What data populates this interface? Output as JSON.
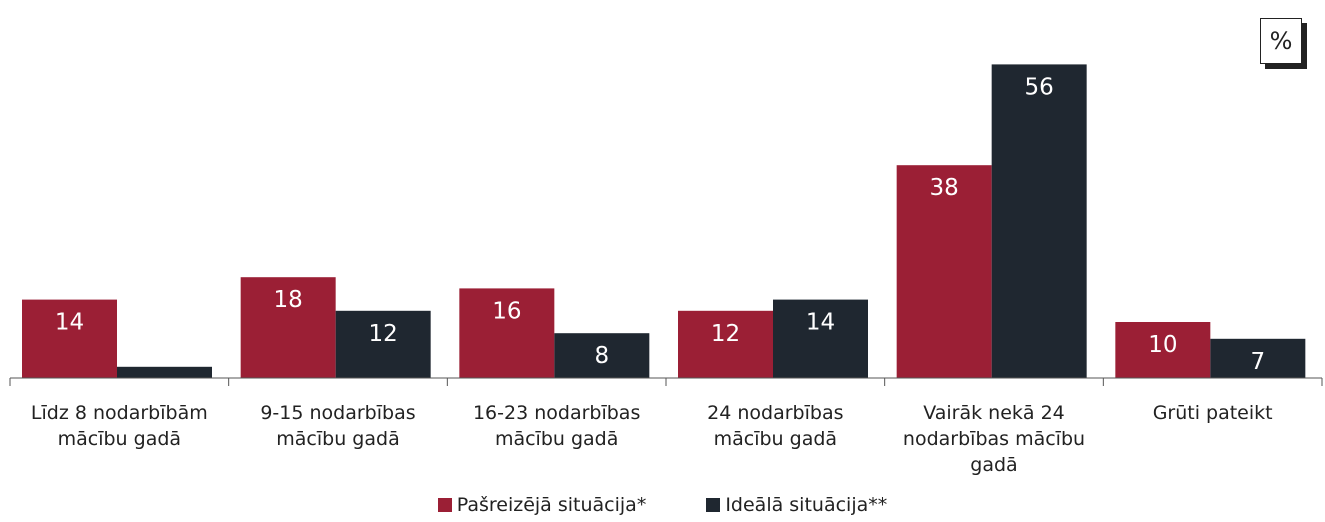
{
  "chart_data": {
    "type": "bar",
    "unit_label": "%",
    "categories": [
      "Līdz 8 nodarbībām mācību gadā",
      "9-15 nodarbības mācību gadā",
      "16-23 nodarbības mācību gadā",
      "24 nodarbības mācību gadā",
      "Vairāk nekā 24 nodarbības mācību gadā",
      "Grūti pateikt"
    ],
    "series": [
      {
        "name": "Pašreizējā situācija*",
        "color": "#9b1f35",
        "values": [
          14,
          18,
          16,
          12,
          38,
          10
        ]
      },
      {
        "name": "Ideālā situācija**",
        "color": "#1f2730",
        "values": [
          2,
          12,
          8,
          14,
          56,
          7
        ]
      }
    ],
    "ylim": [
      0,
      60
    ],
    "legend": "bottom"
  }
}
